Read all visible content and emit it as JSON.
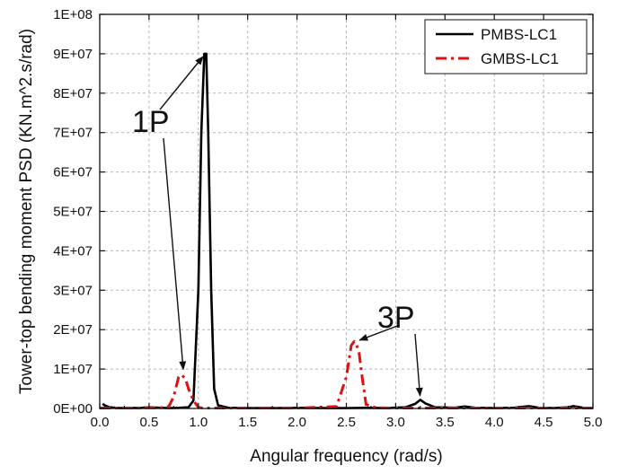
{
  "chart_data": {
    "type": "line",
    "xlabel": "Angular frequency (rad/s)",
    "ylabel": "Tower-top bending moment PSD (KN.m^2.s/rad)",
    "xlim": [
      0.0,
      5.0
    ],
    "ylim": [
      0,
      100000000
    ],
    "xticks": [
      "0.0",
      "0.5",
      "1.0",
      "1.5",
      "2.0",
      "2.5",
      "3.0",
      "3.5",
      "4.0",
      "4.5",
      "5.0"
    ],
    "yticks": [
      "0E+00",
      "1E+07",
      "2E+07",
      "3E+07",
      "4E+07",
      "5E+07",
      "6E+07",
      "7E+07",
      "8E+07",
      "9E+07",
      "1E+08"
    ],
    "grid": true,
    "legend_position": "top-right",
    "series": [
      {
        "name": "PMBS-LC1",
        "color": "#000000",
        "line_style": "solid",
        "x": [
          0.03,
          0.05,
          0.1,
          0.2,
          0.3,
          0.4,
          0.5,
          0.6,
          0.7,
          0.8,
          0.9,
          0.95,
          1.0,
          1.03,
          1.06,
          1.08,
          1.1,
          1.13,
          1.16,
          1.2,
          1.3,
          1.5,
          1.8,
          2.0,
          2.3,
          2.5,
          2.7,
          2.9,
          3.1,
          3.2,
          3.25,
          3.3,
          3.4,
          3.6,
          3.7,
          3.8,
          4.0,
          4.2,
          4.35,
          4.45,
          4.6,
          4.75,
          4.8,
          4.9,
          5.0
        ],
        "y": [
          1200000,
          800000,
          300000,
          100000,
          150000,
          100000,
          300000,
          200000,
          100000,
          150000,
          300000,
          2000000,
          30000000,
          70000000,
          90000000,
          90000000,
          70000000,
          30000000,
          5000000,
          800000,
          200000,
          100000,
          100000,
          150000,
          100000,
          100000,
          150000,
          100000,
          300000,
          1200000,
          2200000,
          1300000,
          300000,
          200000,
          500000,
          200000,
          100000,
          200000,
          600000,
          200000,
          100000,
          300000,
          600000,
          200000,
          100000
        ]
      },
      {
        "name": "GMBS-LC1",
        "color": "#dd1111",
        "line_style": "dash-dot",
        "x": [
          0.0,
          0.3,
          0.5,
          0.6,
          0.7,
          0.75,
          0.8,
          0.83,
          0.87,
          0.9,
          0.95,
          1.0,
          1.05,
          1.5,
          2.0,
          2.4,
          2.5,
          2.55,
          2.58,
          2.6,
          2.63,
          2.66,
          2.7,
          2.8,
          3.0,
          3.5,
          4.0,
          4.5,
          5.0
        ],
        "y": [
          100000,
          100000,
          200000,
          100000,
          500000,
          3000000,
          8000000,
          8500000,
          7500000,
          5000000,
          2000000,
          300000,
          100000,
          100000,
          100000,
          500000,
          8000000,
          16000000,
          17000000,
          16500000,
          14000000,
          8000000,
          1000000,
          200000,
          100000,
          100000,
          100000,
          100000,
          100000
        ]
      }
    ],
    "annotations": [
      {
        "text": "1P",
        "targets": [
          [
            1.07,
            90000000
          ],
          [
            0.85,
            9000000
          ]
        ]
      },
      {
        "text": "3P",
        "targets": [
          [
            2.6,
            17000000
          ],
          [
            3.25,
            2300000
          ]
        ]
      }
    ]
  }
}
